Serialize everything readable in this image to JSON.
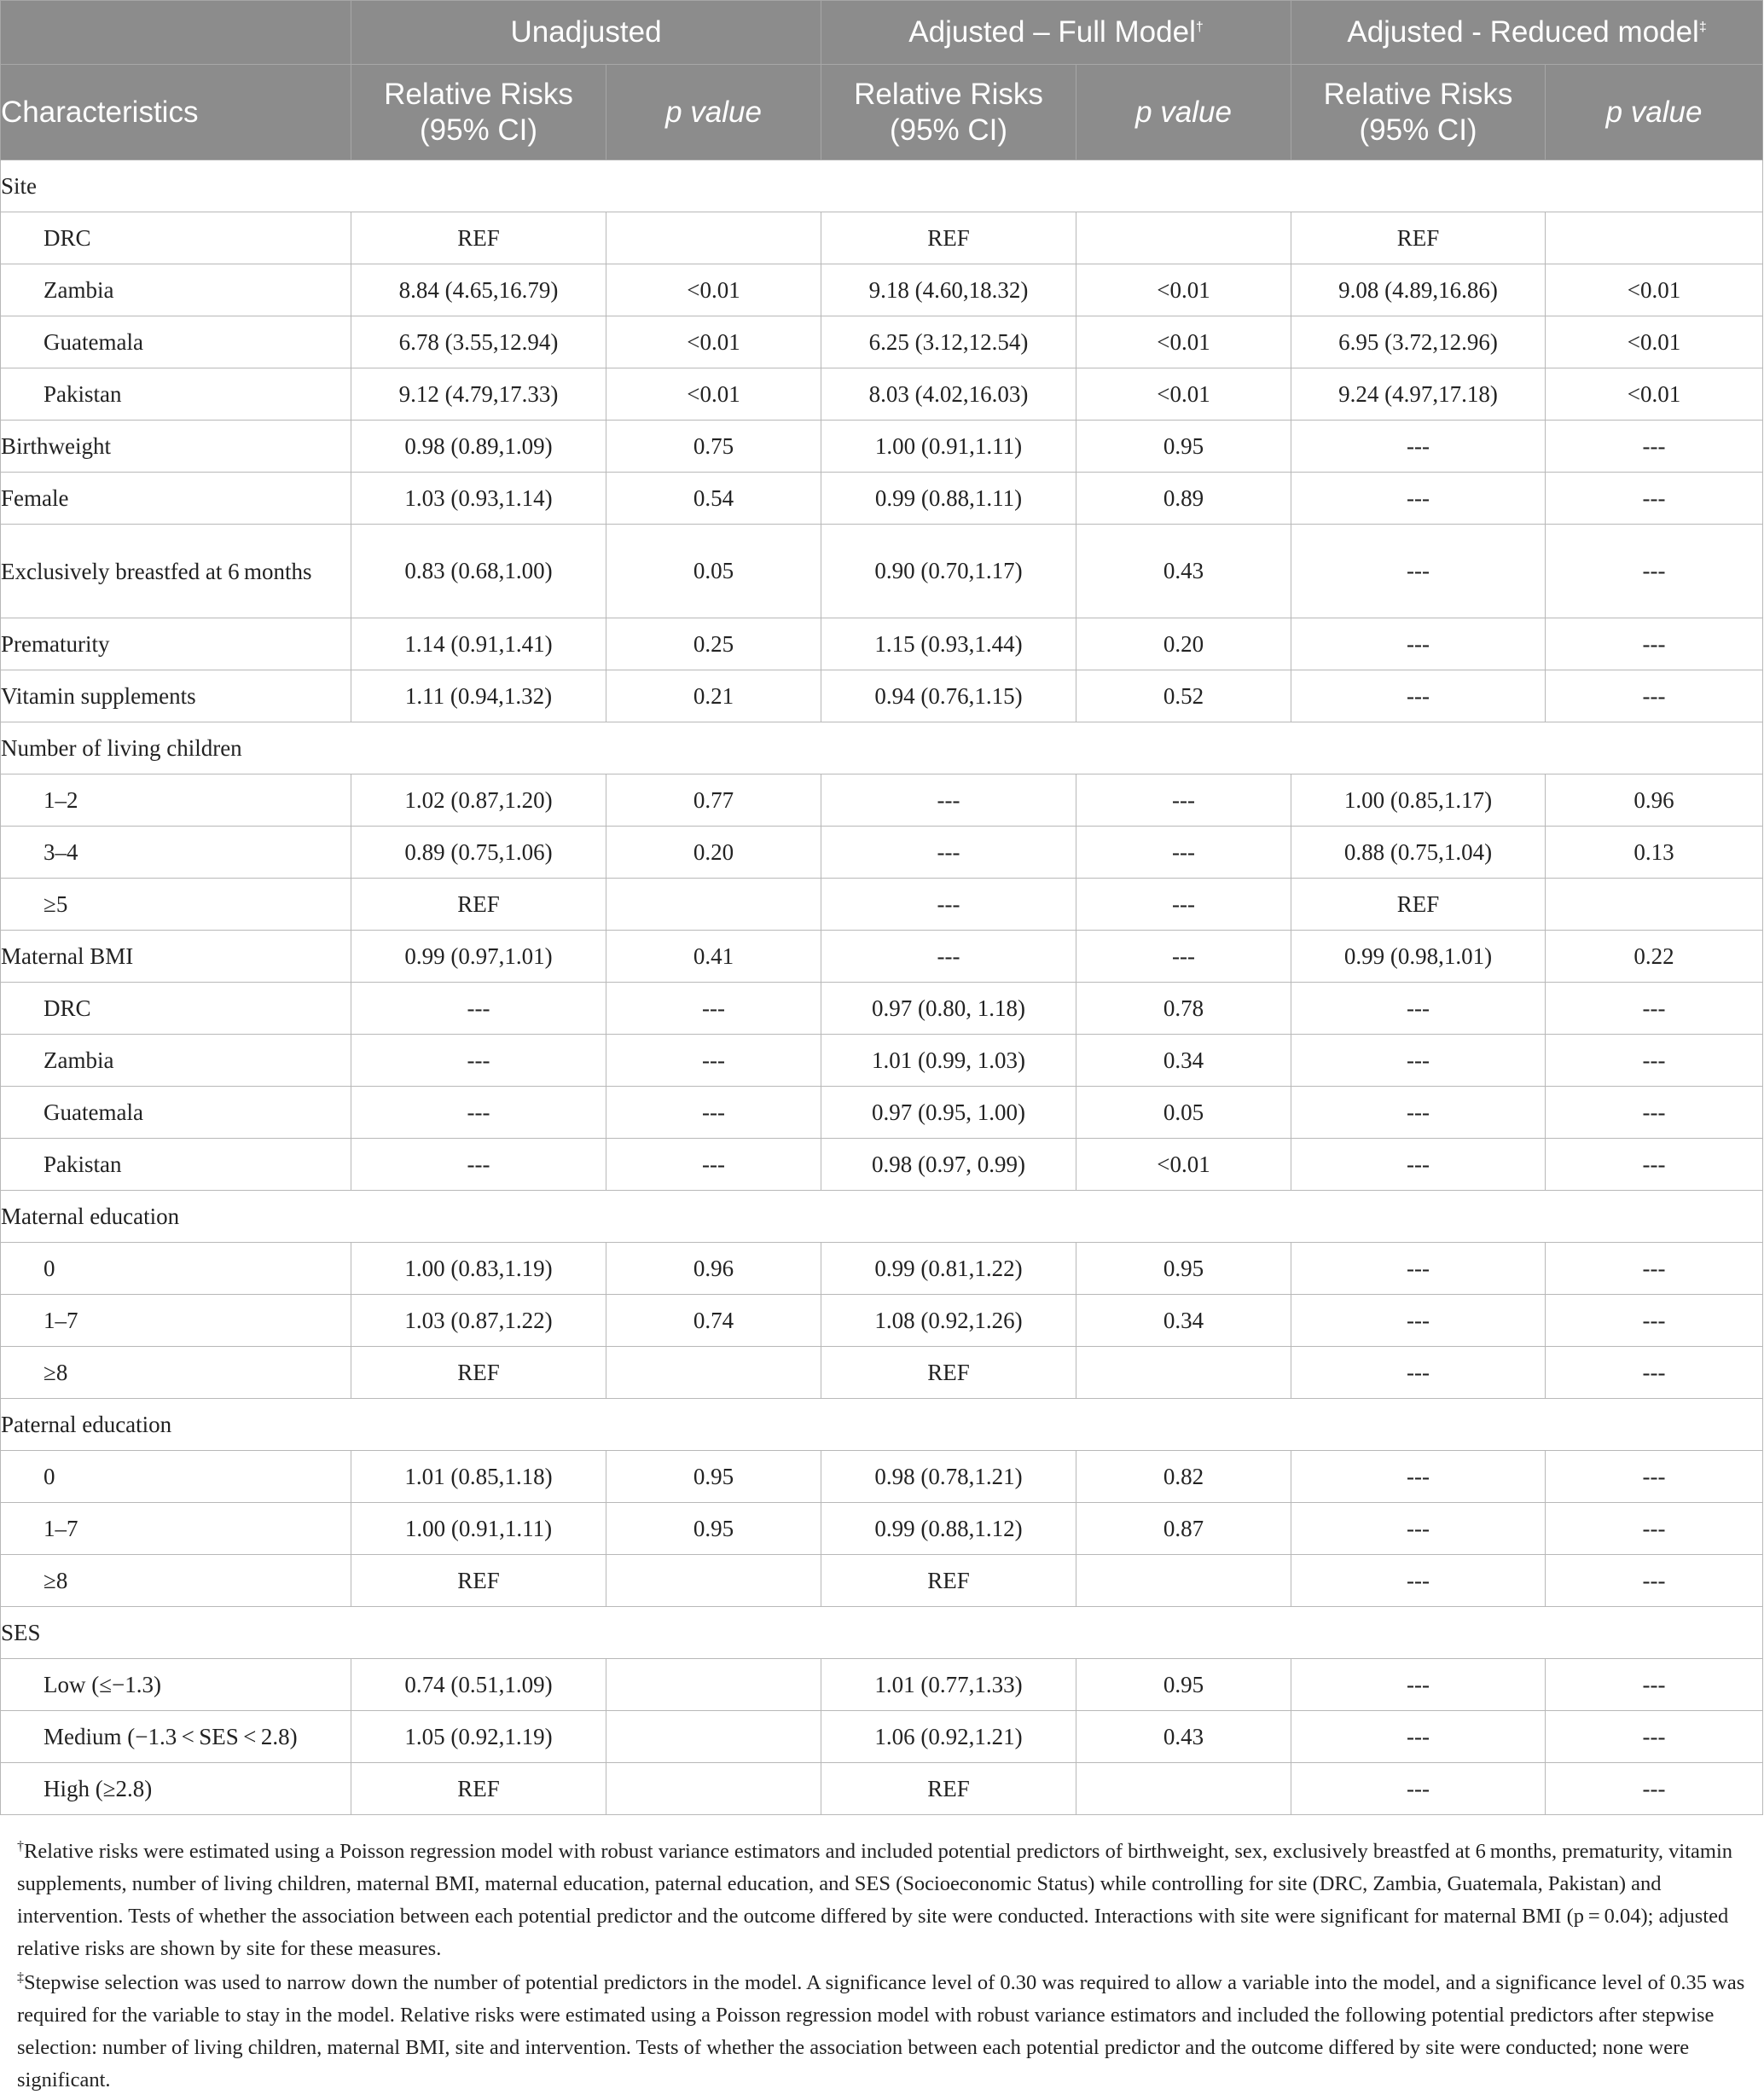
{
  "header": {
    "groups": [
      {
        "label": "Unadjusted",
        "mark": ""
      },
      {
        "label": "Adjusted – Full Model",
        "mark": "†"
      },
      {
        "label": "Adjusted - Reduced model",
        "mark": "‡"
      }
    ],
    "characteristics": "Characteristics",
    "rr_label_line1": "Relative Risks",
    "rr_label_line2": "(95% CI)",
    "p_label": "p value"
  },
  "rows": [
    {
      "label": "Site",
      "section": true
    },
    {
      "label": "DRC",
      "indent": true,
      "cells": [
        "REF",
        "",
        "REF",
        "",
        "REF",
        ""
      ]
    },
    {
      "label": "Zambia",
      "indent": true,
      "cells": [
        "8.84 (4.65,16.79)",
        "<0.01",
        "9.18 (4.60,18.32)",
        "<0.01",
        "9.08 (4.89,16.86)",
        "<0.01"
      ]
    },
    {
      "label": "Guatemala",
      "indent": true,
      "cells": [
        "6.78 (3.55,12.94)",
        "<0.01",
        "6.25 (3.12,12.54)",
        "<0.01",
        "6.95 (3.72,12.96)",
        "<0.01"
      ]
    },
    {
      "label": "Pakistan",
      "indent": true,
      "cells": [
        "9.12 (4.79,17.33)",
        "<0.01",
        "8.03 (4.02,16.03)",
        "<0.01",
        "9.24 (4.97,17.18)",
        "<0.01"
      ]
    },
    {
      "label": "Birthweight",
      "cells": [
        "0.98 (0.89,1.09)",
        "0.75",
        "1.00 (0.91,1.11)",
        "0.95",
        "---",
        "---"
      ]
    },
    {
      "label": "Female",
      "cells": [
        "1.03 (0.93,1.14)",
        "0.54",
        "0.99 (0.88,1.11)",
        "0.89",
        "---",
        "---"
      ]
    },
    {
      "label": "Exclusively breastfed at 6 months",
      "tall": true,
      "cells": [
        "0.83 (0.68,1.00)",
        "0.05",
        "0.90 (0.70,1.17)",
        "0.43",
        "---",
        "---"
      ]
    },
    {
      "label": "Prematurity",
      "cells": [
        "1.14 (0.91,1.41)",
        "0.25",
        "1.15 (0.93,1.44)",
        "0.20",
        "---",
        "---"
      ]
    },
    {
      "label": "Vitamin supplements",
      "cells": [
        "1.11 (0.94,1.32)",
        "0.21",
        "0.94 (0.76,1.15)",
        "0.52",
        "---",
        "---"
      ]
    },
    {
      "label": "Number of living children",
      "section": true
    },
    {
      "label": "1–2",
      "indent": true,
      "cells": [
        "1.02 (0.87,1.20)",
        "0.77",
        "---",
        "---",
        "1.00 (0.85,1.17)",
        "0.96"
      ]
    },
    {
      "label": "3–4",
      "indent": true,
      "cells": [
        "0.89 (0.75,1.06)",
        "0.20",
        "---",
        "---",
        "0.88 (0.75,1.04)",
        "0.13"
      ]
    },
    {
      "label": "≥5",
      "indent": true,
      "cells": [
        "REF",
        "",
        "---",
        "---",
        "REF",
        ""
      ]
    },
    {
      "label": "Maternal BMI",
      "cells": [
        "0.99 (0.97,1.01)",
        "0.41",
        "---",
        "---",
        "0.99 (0.98,1.01)",
        "0.22"
      ]
    },
    {
      "label": "DRC",
      "indent": true,
      "cells": [
        "---",
        "---",
        "0.97 (0.80, 1.18)",
        "0.78",
        "---",
        "---"
      ]
    },
    {
      "label": "Zambia",
      "indent": true,
      "cells": [
        "---",
        "---",
        "1.01 (0.99, 1.03)",
        "0.34",
        "---",
        "---"
      ]
    },
    {
      "label": "Guatemala",
      "indent": true,
      "cells": [
        "---",
        "---",
        "0.97 (0.95, 1.00)",
        "0.05",
        "---",
        "---"
      ]
    },
    {
      "label": "Pakistan",
      "indent": true,
      "cells": [
        "---",
        "---",
        "0.98 (0.97, 0.99)",
        "<0.01",
        "---",
        "---"
      ]
    },
    {
      "label": "Maternal education",
      "section": true
    },
    {
      "label": "0",
      "indent": true,
      "cells": [
        "1.00 (0.83,1.19)",
        "0.96",
        "0.99 (0.81,1.22)",
        "0.95",
        "---",
        "---"
      ]
    },
    {
      "label": "1–7",
      "indent": true,
      "cells": [
        "1.03 (0.87,1.22)",
        "0.74",
        "1.08 (0.92,1.26)",
        "0.34",
        "---",
        "---"
      ]
    },
    {
      "label": "≥8",
      "indent": true,
      "cells": [
        "REF",
        "",
        "REF",
        "",
        "---",
        "---"
      ]
    },
    {
      "label": "Paternal education",
      "section": true
    },
    {
      "label": "0",
      "indent": true,
      "cells": [
        "1.01 (0.85,1.18)",
        "0.95",
        "0.98 (0.78,1.21)",
        "0.82",
        "---",
        "---"
      ]
    },
    {
      "label": "1–7",
      "indent": true,
      "cells": [
        "1.00 (0.91,1.11)",
        "0.95",
        "0.99 (0.88,1.12)",
        "0.87",
        "---",
        "---"
      ]
    },
    {
      "label": "≥8",
      "indent": true,
      "cells": [
        "REF",
        "",
        "REF",
        "",
        "---",
        "---"
      ]
    },
    {
      "label": "SES",
      "section": true
    },
    {
      "label": "Low (≤−1.3)",
      "indent": true,
      "cells": [
        "0.74 (0.51,1.09)",
        "",
        "1.01 (0.77,1.33)",
        "0.95",
        "---",
        "---"
      ]
    },
    {
      "label": "Medium (−1.3 < SES < 2.8)",
      "indent": true,
      "cells": [
        "1.05 (0.92,1.19)",
        "",
        "1.06 (0.92,1.21)",
        "0.43",
        "---",
        "---"
      ]
    },
    {
      "label": "High (≥2.8)",
      "indent": true,
      "cells": [
        "REF",
        "",
        "REF",
        "",
        "---",
        "---"
      ]
    }
  ],
  "footnotes": {
    "dagger_mark": "†",
    "dagger_text": "Relative risks were estimated using a Poisson regression model with robust variance estimators and included potential predictors of birthweight, sex, exclusively breastfed at 6 months, prematurity, vitamin supplements, number of living children, maternal BMI, maternal education, paternal education, and SES (Socioeconomic Status) while controlling for site (DRC, Zambia, Guatemala, Pakistan) and intervention. Tests of whether the association between each potential predictor and the outcome differed by site were conducted. Interactions with site were significant for maternal BMI (p = 0.04); adjusted relative risks are shown by site for these measures.",
    "ddagger_mark": "‡",
    "ddagger_text": "Stepwise selection was used to narrow down the number of potential predictors in the model. A significance level of 0.30 was required to allow a variable into the model, and a significance level of 0.35 was required for the variable to stay in the model. Relative risks were estimated using a Poisson regression model with robust variance estimators and included the following potential predictors after stepwise selection: number of living children, maternal BMI, site and intervention. Tests of whether the association between each potential predictor and the outcome differed by site were conducted; none were significant."
  }
}
